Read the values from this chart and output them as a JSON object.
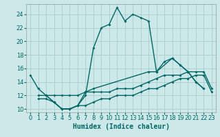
{
  "background_color": "#cce8e8",
  "grid_color": "#aacccc",
  "line_color": "#006666",
  "marker_style": "D",
  "marker_size": 2.0,
  "line_width": 1.0,
  "xlabel": "Humidex (Indice chaleur)",
  "xlabel_fontsize": 7,
  "tick_fontsize": 6,
  "xlim": [
    -0.5,
    23.5
  ],
  "ylim": [
    9.5,
    25.5
  ],
  "yticks": [
    10,
    12,
    14,
    16,
    18,
    20,
    22,
    24
  ],
  "xticks": [
    0,
    1,
    2,
    3,
    4,
    5,
    6,
    7,
    8,
    9,
    10,
    11,
    12,
    13,
    14,
    15,
    16,
    17,
    18,
    19,
    20,
    21,
    22,
    23
  ],
  "series": [
    {
      "x": [
        0,
        1,
        2,
        3,
        4,
        5,
        6,
        7,
        8,
        9,
        10,
        11,
        12,
        13,
        14,
        15,
        16,
        17,
        18,
        19,
        20,
        21,
        22,
        23
      ],
      "y": [
        15,
        13,
        12,
        11,
        10,
        10,
        10.5,
        12,
        19,
        22,
        22.5,
        25,
        23,
        24,
        23.5,
        23,
        15.5,
        17,
        17.5,
        16.5,
        15.5,
        14,
        13,
        null
      ]
    },
    {
      "x": [
        2,
        3,
        4,
        5,
        6,
        7,
        8,
        15,
        16,
        18,
        19,
        20,
        21,
        22
      ],
      "y": [
        12,
        11,
        10,
        10,
        10.5,
        12.5,
        13,
        15.5,
        15.5,
        17.5,
        16.5,
        15.5,
        14,
        13
      ]
    },
    {
      "x": [
        1,
        2,
        3,
        4,
        5,
        6,
        7,
        8,
        9,
        10,
        11,
        12,
        13,
        14,
        15,
        16,
        17,
        18,
        19,
        20,
        21,
        22,
        23
      ],
      "y": [
        12,
        12,
        12,
        12,
        12,
        12,
        12.5,
        12.5,
        12.5,
        12.5,
        13,
        13,
        13,
        13.5,
        14,
        14.5,
        15,
        15,
        15,
        15.5,
        15.5,
        15.5,
        13
      ]
    },
    {
      "x": [
        1,
        2,
        3,
        4,
        5,
        6,
        7,
        8,
        9,
        10,
        11,
        12,
        13,
        14,
        15,
        16,
        17,
        18,
        19,
        20,
        21,
        22,
        23
      ],
      "y": [
        11.5,
        11.5,
        11,
        10,
        10,
        10.5,
        10.5,
        11,
        11.5,
        11.5,
        12,
        12,
        12,
        12.5,
        13,
        13,
        13.5,
        14,
        14.5,
        14.5,
        15,
        15,
        12.5
      ]
    }
  ]
}
